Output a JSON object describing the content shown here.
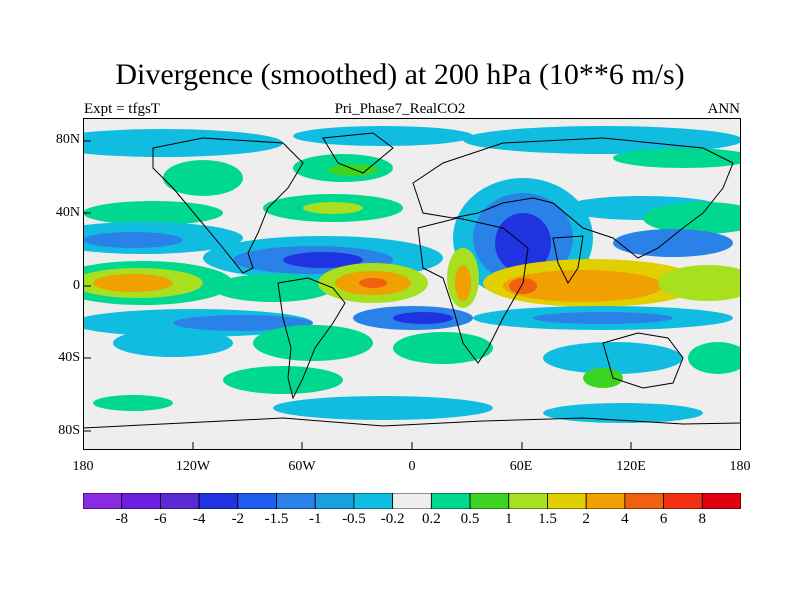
{
  "title": "Divergence (smoothed) at 200 hPa (10**6 m/s)",
  "subtitle_left": "Expt = tfgsT",
  "subtitle_center": "Pri_Phase7_RealCO2",
  "subtitle_right": "ANN",
  "lat_labels": [
    "80N",
    "40N",
    "0",
    "40S",
    "80S"
  ],
  "lon_labels": [
    "180",
    "120W",
    "60W",
    "0",
    "60E",
    "120E",
    "180"
  ],
  "colorbar": {
    "labels": [
      "-8",
      "-6",
      "-4",
      "-2",
      "-1.5",
      "-1",
      "-0.5",
      "-0.2",
      "0.2",
      "0.5",
      "1",
      "1.5",
      "2",
      "4",
      "6",
      "8"
    ],
    "colors": [
      "#8a2be2",
      "#6d1fe0",
      "#5a2ad6",
      "#1f33e0",
      "#1f5cf0",
      "#2a82e8",
      "#1aa0e0",
      "#10bde0",
      "#eeeeee",
      "#00d890",
      "#3cd420",
      "#a8e020",
      "#e0d000",
      "#f0a000",
      "#f06010",
      "#f03010",
      "#e00010"
    ]
  },
  "colors": {
    "land_outline": "#000000",
    "background_neutral": "#eeeeee"
  }
}
